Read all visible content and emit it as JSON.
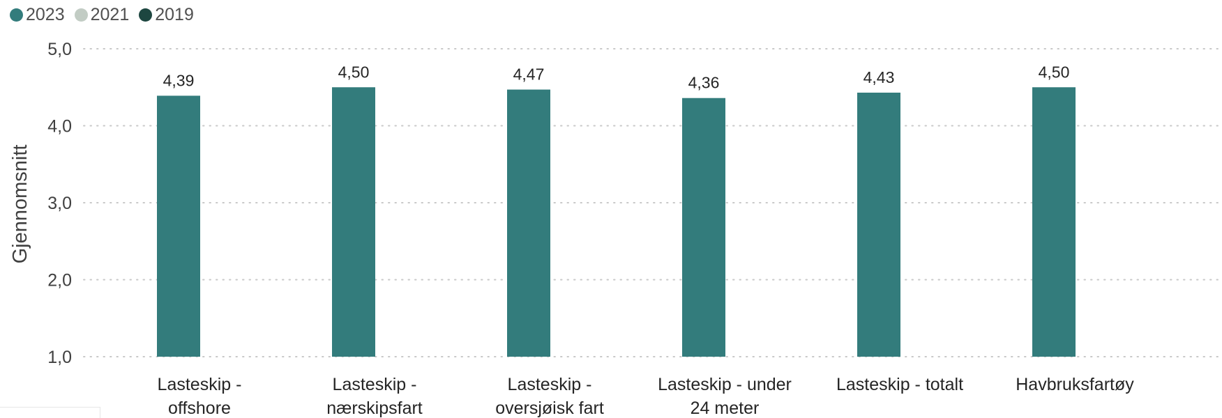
{
  "legend": [
    {
      "label": "2023",
      "color": "#337c7c"
    },
    {
      "label": "2021",
      "color": "#c2ccc4"
    },
    {
      "label": "2019",
      "color": "#1d4640"
    }
  ],
  "chart_data": {
    "type": "bar",
    "categories": [
      [
        "Lasteskip -",
        "offshore"
      ],
      [
        "Lasteskip -",
        "nærskipsfart"
      ],
      [
        "Lasteskip -",
        "oversjøisk fart"
      ],
      [
        "Lasteskip - under",
        "24 meter"
      ],
      [
        "Lasteskip - totalt"
      ],
      [
        "Havbruksfartøy"
      ]
    ],
    "series": [
      {
        "name": "2023",
        "color": "#337c7c",
        "values": [
          4.39,
          4.5,
          4.47,
          4.36,
          4.43,
          4.5
        ]
      }
    ],
    "data_labels": [
      "4,39",
      "4,50",
      "4,47",
      "4,36",
      "4,43",
      "4,50"
    ],
    "ylabel": "Gjennomsnitt",
    "xlabel": "",
    "ylim": [
      1.0,
      5.0
    ],
    "yticks": [
      {
        "value": 1.0,
        "label": "1,0"
      },
      {
        "value": 2.0,
        "label": "2,0"
      },
      {
        "value": 3.0,
        "label": "3,0"
      },
      {
        "value": 4.0,
        "label": "4,0"
      },
      {
        "value": 5.0,
        "label": "5,0"
      }
    ],
    "grid": true,
    "legend_position": "top-left"
  }
}
